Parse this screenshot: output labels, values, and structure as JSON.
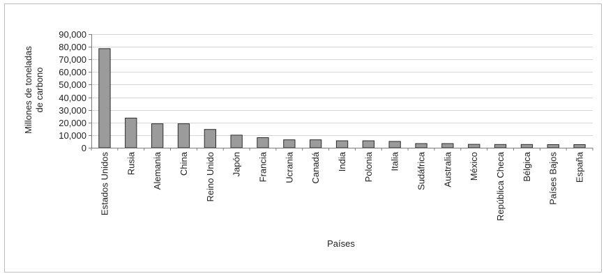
{
  "chart_data": {
    "type": "bar",
    "title": "",
    "xlabel": "Países",
    "ylabel": [
      "Millones de toneladas",
      "de carbono"
    ],
    "ylim": [
      0,
      90000
    ],
    "yticks": [
      0,
      10000,
      20000,
      30000,
      40000,
      50000,
      60000,
      70000,
      80000,
      90000
    ],
    "ytick_labels": [
      "0",
      "10,000",
      "20,000",
      "30,000",
      "40,000",
      "50,000",
      "60,000",
      "70,000",
      "80,000",
      "90,000"
    ],
    "grid": true,
    "legend": "none",
    "bar_color": "#9b9b9b",
    "categories": [
      "Estados Unidos",
      "Rusia",
      "Alemania",
      "China",
      "Reino Unido",
      "Japón",
      "Francia",
      "Ucrania",
      "Canadá",
      "India",
      "Polonia",
      "Italia",
      "Sudáfrica",
      "Australia",
      "México",
      "República Checa",
      "Bélgica",
      "Países Bajos",
      "España"
    ],
    "values": [
      78500,
      23500,
      19000,
      19000,
      14500,
      10000,
      8000,
      6300,
      6300,
      5500,
      5500,
      5000,
      3300,
      3300,
      2700,
      2600,
      2600,
      2500,
      2500
    ]
  }
}
